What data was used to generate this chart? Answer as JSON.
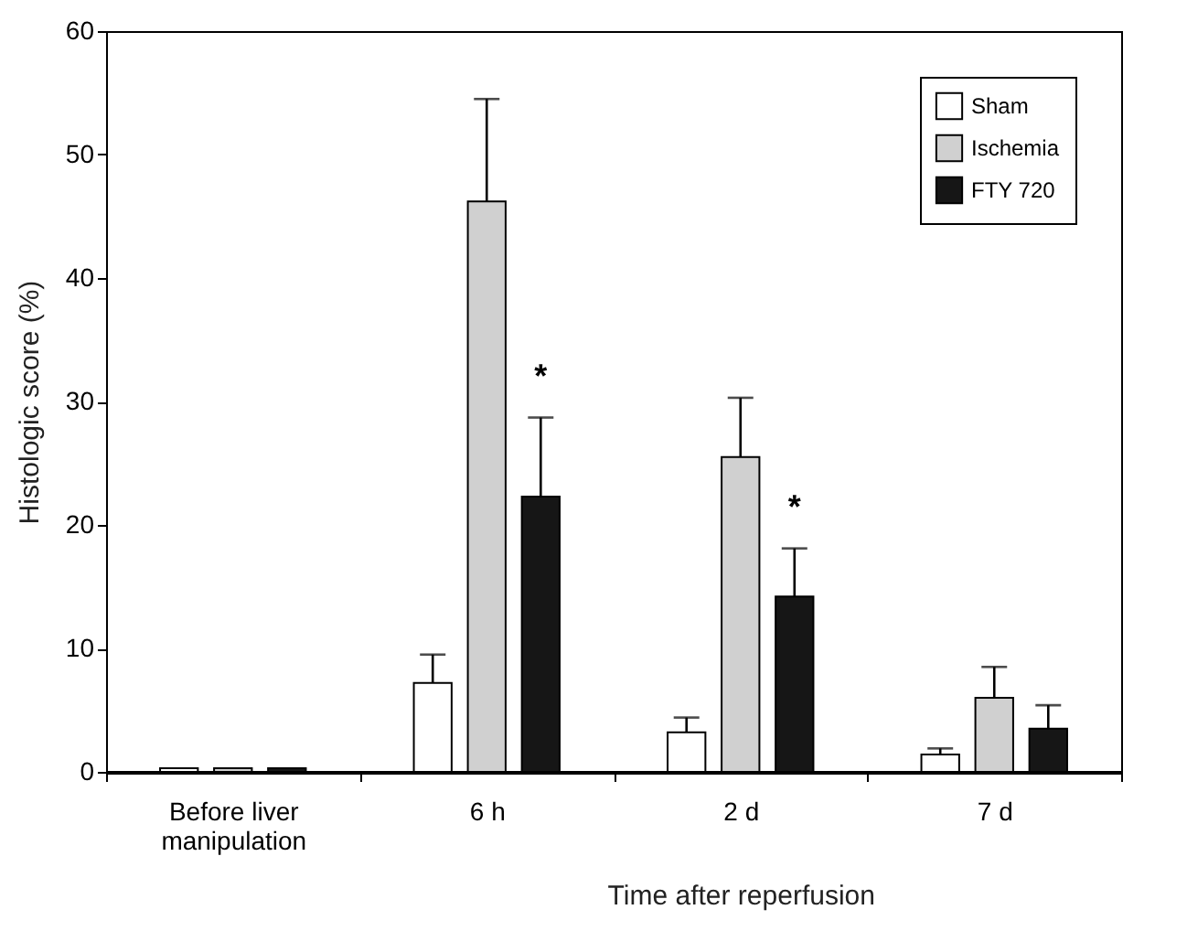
{
  "chart_data": {
    "type": "bar",
    "ylabel": "Histologic score (%)",
    "xlabel": "Time after reperfusion",
    "categories": [
      "Before liver\nmanipulation",
      "6 h",
      "2 d",
      "7 d"
    ],
    "series": [
      {
        "name": "Sham",
        "color": "#ffffff",
        "values": [
          0.3,
          7.2,
          3.2,
          1.4
        ],
        "errors": [
          null,
          2.3,
          1.2,
          0.5
        ]
      },
      {
        "name": "Ischemia",
        "color": "#d0d0d0",
        "values": [
          0.3,
          46.2,
          25.5,
          6.0
        ],
        "errors": [
          null,
          8.3,
          4.8,
          2.5
        ]
      },
      {
        "name": "FTY 720",
        "color": "#161616",
        "values": [
          0.3,
          22.3,
          14.2,
          3.5
        ],
        "errors": [
          null,
          6.4,
          3.9,
          1.9
        ]
      }
    ],
    "ylim": [
      0,
      60
    ],
    "yticks": [
      0,
      10,
      20,
      30,
      40,
      50,
      60
    ],
    "grid": false,
    "legend": "top right",
    "annotations": [
      "*",
      "*"
    ]
  }
}
